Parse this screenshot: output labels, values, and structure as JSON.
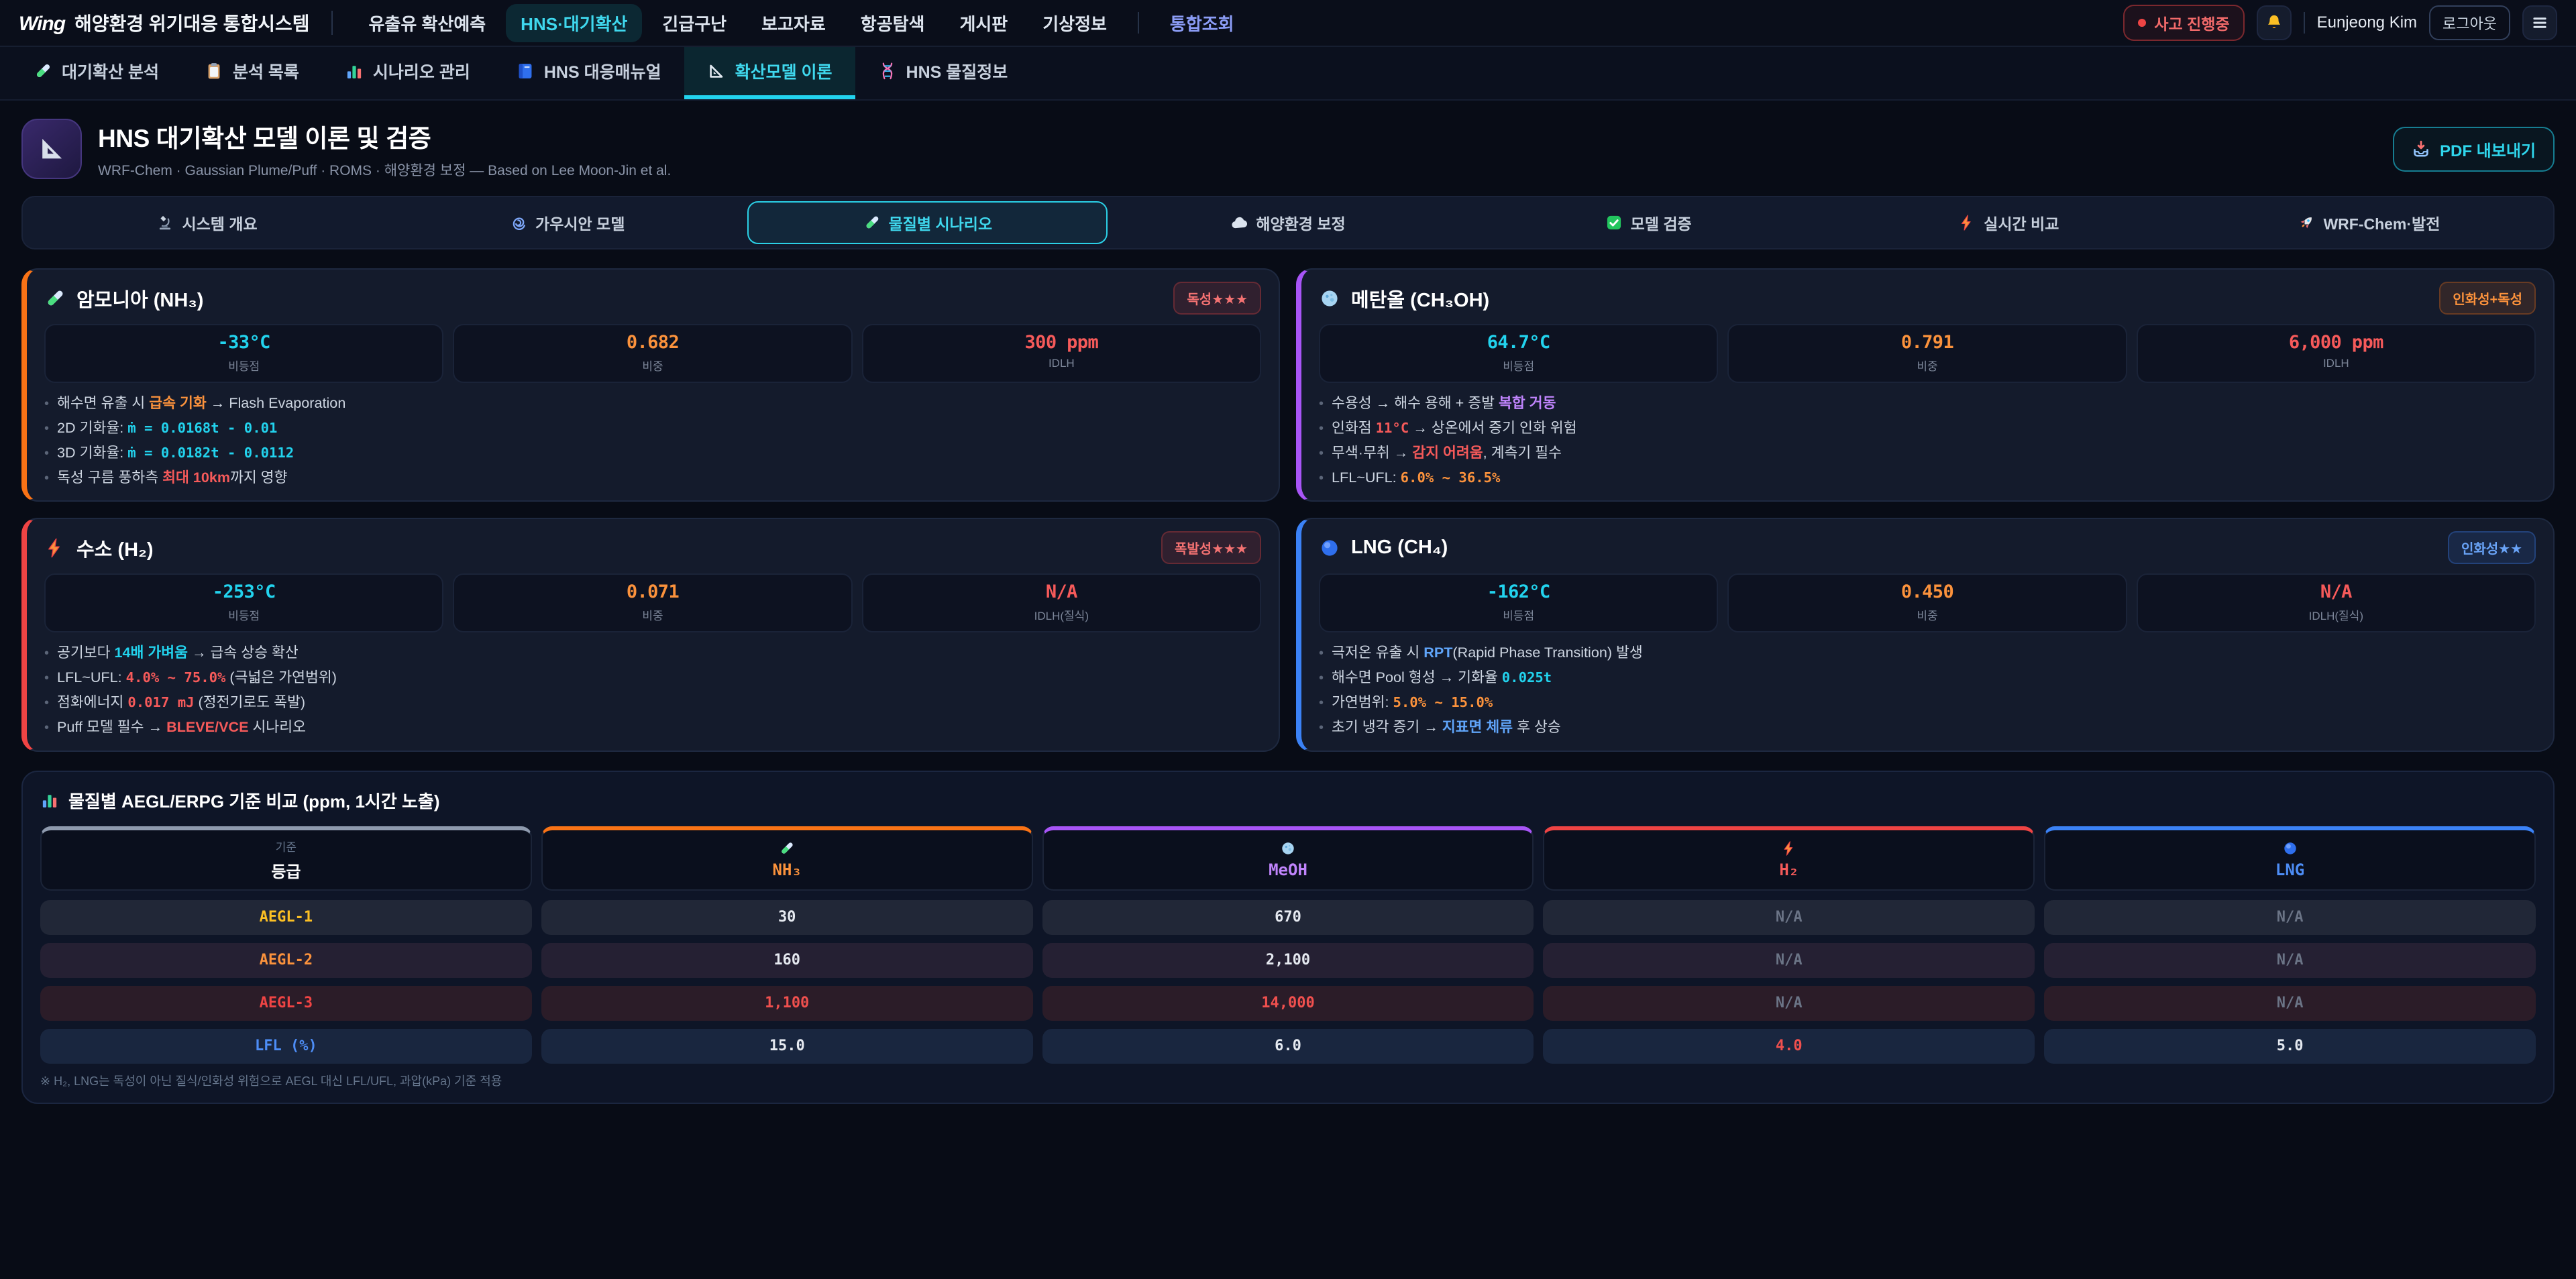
{
  "brand": {
    "logo_mark": "Wing",
    "logo_text": "해양환경 위기대응 통합시스템"
  },
  "topnav": {
    "items": [
      {
        "id": "oil-spill",
        "label": "유출유 확산예측",
        "active": false
      },
      {
        "id": "hns",
        "label": "HNS·대기확산",
        "active": true
      },
      {
        "id": "rescue",
        "label": "긴급구난",
        "active": false
      },
      {
        "id": "reports",
        "label": "보고자료",
        "active": false
      },
      {
        "id": "aerial",
        "label": "항공탐색",
        "active": false
      },
      {
        "id": "board",
        "label": "게시판",
        "active": false
      },
      {
        "id": "weather",
        "label": "기상정보",
        "active": false
      },
      {
        "id": "portal",
        "label": "통합조회",
        "active": false,
        "accent": true,
        "divider_before": true
      }
    ],
    "incident_badge": "사고 진행중",
    "username": "Eunjeong Kim",
    "logout": "로그아웃"
  },
  "tabs": [
    {
      "id": "analysis",
      "icon": "test-tube",
      "label": "대기확산 분석",
      "active": false
    },
    {
      "id": "list",
      "icon": "clipboard",
      "label": "분석 목록",
      "active": false
    },
    {
      "id": "scenario",
      "icon": "bar-chart",
      "label": "시나리오 관리",
      "active": false
    },
    {
      "id": "manual",
      "icon": "book",
      "label": "HNS 대응매뉴얼",
      "active": false
    },
    {
      "id": "theory",
      "icon": "ruler-triangle",
      "label": "확산모델 이론",
      "active": true
    },
    {
      "id": "substance",
      "icon": "dna",
      "label": "HNS 물질정보",
      "active": false
    }
  ],
  "header": {
    "title": "HNS 대기확산 모델 이론 및 검증",
    "subtitle": "WRF-Chem · Gaussian Plume/Puff · ROMS · 해양환경 보정 — Based on Lee Moon-Jin et al.",
    "pdf_button": "PDF 내보내기"
  },
  "subtabs": [
    {
      "id": "overview",
      "icon": "microscope",
      "label": "시스템 개요",
      "active": false
    },
    {
      "id": "gaussian",
      "icon": "swirl",
      "label": "가우시안 모델",
      "active": false
    },
    {
      "id": "scenarios",
      "icon": "test-tube",
      "label": "물질별 시나리오",
      "active": true
    },
    {
      "id": "marine",
      "icon": "cloud",
      "label": "해양환경 보정",
      "active": false
    },
    {
      "id": "validation",
      "icon": "check",
      "label": "모델 검증",
      "active": false
    },
    {
      "id": "realtime",
      "icon": "zap",
      "label": "실시간 비교",
      "active": false
    },
    {
      "id": "wrfchem",
      "icon": "rocket",
      "label": "WRF-Chem·발전",
      "active": false
    }
  ],
  "chemicals": [
    {
      "id": "nh3",
      "icon": "test-tube",
      "name": "암모니아 (NH₃)",
      "accent": "#f97316",
      "badge": {
        "text": "독성★★★",
        "variant": "red"
      },
      "stats": [
        {
          "value": "-33°C",
          "color": "cyan",
          "label": "비등점"
        },
        {
          "value": "0.682",
          "color": "orange",
          "label": "비중"
        },
        {
          "value": "300 ppm",
          "color": "red",
          "label": "IDLH"
        }
      ],
      "bullets": [
        [
          {
            "text": "해수면 유출 시 "
          },
          {
            "text": "급속 기화",
            "style": "hl-orange"
          },
          {
            "text": " → Flash Evaporation"
          }
        ],
        [
          {
            "text": "2D 기화율: "
          },
          {
            "text": "ṁ = 0.0168t - 0.01",
            "style": "mono-cyan"
          }
        ],
        [
          {
            "text": "3D 기화율: "
          },
          {
            "text": "ṁ = 0.0182t - 0.0112",
            "style": "mono-cyan"
          }
        ],
        [
          {
            "text": "독성 구름 풍하측 "
          },
          {
            "text": "최대 10km",
            "style": "hl-red"
          },
          {
            "text": "까지 영향"
          }
        ]
      ]
    },
    {
      "id": "meoh",
      "icon": "molecule",
      "name": "메탄올 (CH₃OH)",
      "accent": "#a855f7",
      "badge": {
        "text": "인화성+독성",
        "variant": "orange"
      },
      "stats": [
        {
          "value": "64.7°C",
          "color": "cyan",
          "label": "비등점"
        },
        {
          "value": "0.791",
          "color": "orange",
          "label": "비중"
        },
        {
          "value": "6,000 ppm",
          "color": "red",
          "label": "IDLH"
        }
      ],
      "bullets": [
        [
          {
            "text": "수용성 → 해수 용해 + 증발 "
          },
          {
            "text": "복합 거동",
            "style": "hl-purple"
          }
        ],
        [
          {
            "text": "인화점 "
          },
          {
            "text": "11°C",
            "style": "mono-red"
          },
          {
            "text": " → 상온에서 증기 인화 위험"
          }
        ],
        [
          {
            "text": "무색·무취 → "
          },
          {
            "text": "감지 어려움",
            "style": "hl-red"
          },
          {
            "text": ", 계측기 필수"
          }
        ],
        [
          {
            "text": "LFL~UFL: "
          },
          {
            "text": "6.0% ~ 36.5%",
            "style": "mono-orange"
          }
        ]
      ]
    },
    {
      "id": "h2",
      "icon": "zap",
      "name": "수소 (H₂)",
      "accent": "#ef4444",
      "badge": {
        "text": "폭발성★★★",
        "variant": "red"
      },
      "stats": [
        {
          "value": "-253°C",
          "color": "cyan",
          "label": "비등점"
        },
        {
          "value": "0.071",
          "color": "orange",
          "label": "비중"
        },
        {
          "value": "N/A",
          "color": "red",
          "label": "IDLH(질식)"
        }
      ],
      "bullets": [
        [
          {
            "text": "공기보다 "
          },
          {
            "text": "14배 가벼움",
            "style": "hl-cyan"
          },
          {
            "text": " → 급속 상승 확산"
          }
        ],
        [
          {
            "text": "LFL~UFL: "
          },
          {
            "text": "4.0% ~ 75.0%",
            "style": "mono-red"
          },
          {
            "text": " (극넓은 가연범위)"
          }
        ],
        [
          {
            "text": "점화에너지 "
          },
          {
            "text": "0.017 mJ",
            "style": "mono-red"
          },
          {
            "text": " (정전기로도 폭발)"
          }
        ],
        [
          {
            "text": "Puff 모델 필수 → "
          },
          {
            "text": "BLEVE/VCE",
            "style": "hl-red"
          },
          {
            "text": " 시나리오"
          }
        ]
      ]
    },
    {
      "id": "lng",
      "icon": "blue-circle",
      "name": "LNG (CH₄)",
      "accent": "#3b82f6",
      "badge": {
        "text": "인화성★★",
        "variant": "blue"
      },
      "stats": [
        {
          "value": "-162°C",
          "color": "cyan",
          "label": "비등점"
        },
        {
          "value": "0.450",
          "color": "orange",
          "label": "비중"
        },
        {
          "value": "N/A",
          "color": "red",
          "label": "IDLH(질식)"
        }
      ],
      "bullets": [
        [
          {
            "text": "극저온 유출 시 "
          },
          {
            "text": "RPT",
            "style": "hl-blue"
          },
          {
            "text": "(Rapid Phase Transition) 발생"
          }
        ],
        [
          {
            "text": "해수면 Pool 형성 → 기화율 "
          },
          {
            "text": "0.025t",
            "style": "mono-cyan"
          }
        ],
        [
          {
            "text": "가연범위: "
          },
          {
            "text": "5.0% ~ 15.0%",
            "style": "mono-orange"
          }
        ],
        [
          {
            "text": "초기 냉각 증기 → "
          },
          {
            "text": "지표면 체류",
            "style": "hl-blue"
          },
          {
            "text": " 후 상승"
          }
        ]
      ]
    }
  ],
  "table": {
    "title": "물질별 AEGL/ERPG 기준 비교 (ppm, 1시간 노출)",
    "corner": {
      "sub": "기준",
      "main": "등급",
      "top_color": "#8e9aae"
    },
    "columns": [
      {
        "id": "nh3",
        "icon": "test-tube",
        "label": "NH₃",
        "text_color": "#fb923c",
        "top_color": "#f97316"
      },
      {
        "id": "meoh",
        "icon": "molecule",
        "label": "MeOH",
        "text_color": "#c084fc",
        "top_color": "#a855f7"
      },
      {
        "id": "h2",
        "icon": "zap",
        "label": "H₂",
        "text_color": "#f35a5a",
        "top_color": "#ef4444"
      },
      {
        "id": "lng",
        "icon": "blue-circle",
        "label": "LNG",
        "text_color": "#4d8df6",
        "top_color": "#3b82f6"
      }
    ],
    "rows": [
      {
        "label": "AEGL-1",
        "label_color": "amber",
        "tone": "gray",
        "values": [
          {
            "text": "30",
            "tone": "normal"
          },
          {
            "text": "670",
            "tone": "normal"
          },
          {
            "text": "N/A",
            "tone": "muted"
          },
          {
            "text": "N/A",
            "tone": "muted"
          }
        ]
      },
      {
        "label": "AEGL-2",
        "label_color": "orange",
        "tone": "warm",
        "values": [
          {
            "text": "160",
            "tone": "normal"
          },
          {
            "text": "2,100",
            "tone": "normal"
          },
          {
            "text": "N/A",
            "tone": "muted"
          },
          {
            "text": "N/A",
            "tone": "muted"
          }
        ]
      },
      {
        "label": "AEGL-3",
        "label_color": "red",
        "tone": "red",
        "values": [
          {
            "text": "1,100",
            "tone": "red"
          },
          {
            "text": "14,000",
            "tone": "red"
          },
          {
            "text": "N/A",
            "tone": "muted"
          },
          {
            "text": "N/A",
            "tone": "muted"
          }
        ]
      },
      {
        "label": "LFL (%)",
        "label_color": "blue",
        "tone": "blue",
        "values": [
          {
            "text": "15.0",
            "tone": "normal"
          },
          {
            "text": "6.0",
            "tone": "normal"
          },
          {
            "text": "4.0",
            "tone": "red"
          },
          {
            "text": "5.0",
            "tone": "normal"
          }
        ]
      }
    ],
    "note": "※ H₂, LNG는 독성이 아닌 질식/인화성 위험으로 AEGL 대신 LFL/UFL, 과압(kPa) 기준 적용"
  }
}
